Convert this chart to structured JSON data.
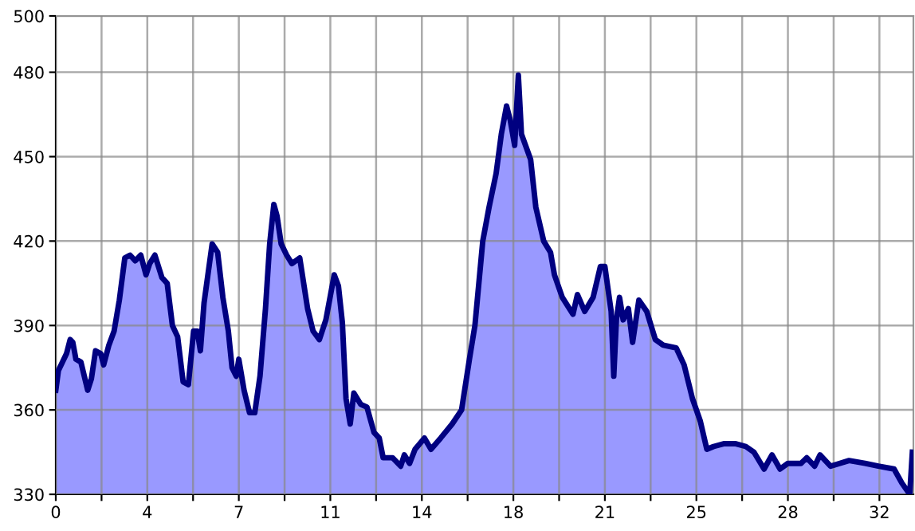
{
  "chart_data": {
    "type": "area",
    "x": [
      0,
      0.1,
      0.41,
      0.55,
      0.65,
      0.77,
      0.96,
      1.22,
      1.36,
      1.52,
      1.72,
      1.83,
      2.03,
      2.23,
      2.43,
      2.64,
      2.84,
      3.04,
      3.25,
      3.45,
      3.59,
      3.79,
      4.06,
      4.26,
      4.46,
      4.66,
      4.87,
      5.07,
      5.27,
      5.41,
      5.53,
      5.67,
      5.98,
      6.19,
      6.39,
      6.6,
      6.74,
      6.9,
      7.0,
      7.2,
      7.41,
      7.61,
      7.81,
      8.02,
      8.18,
      8.34,
      8.46,
      8.62,
      8.83,
      9.03,
      9.33,
      9.63,
      9.84,
      10.08,
      10.33,
      10.65,
      10.81,
      10.96,
      11.1,
      11.26,
      11.4,
      11.66,
      11.9,
      12.17,
      12.37,
      12.52,
      12.88,
      13.19,
      13.33,
      13.53,
      13.74,
      14.1,
      14.35,
      14.72,
      15.16,
      15.52,
      15.82,
      16.03,
      16.33,
      16.57,
      16.84,
      17.04,
      17.24,
      17.38,
      17.55,
      17.69,
      17.81,
      18.16,
      18.36,
      18.66,
      18.92,
      19.07,
      19.37,
      19.78,
      19.95,
      20.23,
      20.55,
      20.83,
      21.0,
      21.24,
      21.34,
      21.44,
      21.56,
      21.7,
      21.9,
      22.06,
      22.3,
      22.6,
      22.93,
      23.23,
      23.73,
      24.03,
      24.35,
      24.65,
      24.9,
      25.16,
      25.57,
      25.98,
      26.39,
      26.7,
      27.09,
      27.39,
      27.7,
      28.0,
      28.5,
      28.72,
      29.02,
      29.23,
      29.63,
      30.34,
      30.95,
      31.46,
      32.06,
      32.36,
      32.66,
      32.76
    ],
    "series": [
      {
        "color": "#9999ff",
        "values": [
          367,
          374,
          380,
          385,
          384,
          378,
          377,
          367,
          371,
          381,
          380,
          376,
          383,
          388,
          399,
          414,
          415,
          413,
          415,
          408,
          412,
          415,
          407,
          405,
          390,
          386,
          370,
          369,
          388,
          388,
          381,
          398,
          419,
          416,
          400,
          388,
          375,
          372,
          378,
          367,
          359,
          359,
          372,
          396,
          419,
          433,
          429,
          419,
          415,
          412,
          414,
          396,
          388,
          385,
          392,
          408,
          404,
          391,
          364,
          355,
          366,
          362,
          361,
          352,
          350,
          343,
          343,
          340,
          344,
          341,
          346,
          350,
          346,
          350,
          355,
          360,
          378,
          390,
          420,
          432,
          444,
          458,
          468,
          463,
          454,
          479,
          458,
          449,
          432,
          420,
          416,
          408,
          400,
          394,
          401,
          395,
          400,
          411,
          411,
          395,
          372,
          392,
          400,
          392,
          396,
          384,
          399,
          395,
          385,
          383,
          382,
          376,
          364,
          356,
          346,
          347,
          348,
          348,
          347,
          345,
          339,
          344,
          339,
          341,
          341,
          343,
          340,
          344,
          340,
          342,
          341,
          340,
          339,
          334,
          330,
          345
        ]
      }
    ],
    "xlim": [
      0,
      32.8
    ],
    "xticks": [
      0,
      {
        "value": 1.75,
        "label": null
      },
      {
        "value": 3.5,
        "label": "4"
      },
      {
        "value": 5.25,
        "label": null
      },
      7,
      {
        "value": 8.75,
        "label": null
      },
      {
        "value": 10.5,
        "label": "11"
      },
      {
        "value": 12.25,
        "label": null
      },
      14,
      {
        "value": 15.75,
        "label": null
      },
      {
        "value": 17.5,
        "label": "18"
      },
      {
        "value": 19.25,
        "label": null
      },
      21,
      {
        "value": 22.75,
        "label": null
      },
      {
        "value": 24.5,
        "label": "25"
      },
      {
        "value": 26.25,
        "label": null
      },
      28,
      {
        "value": 29.75,
        "label": null
      },
      {
        "value": 31.5,
        "label": "32"
      }
    ],
    "ylim": [
      330,
      500
    ],
    "yticks": [
      330,
      360,
      390,
      420,
      450,
      480,
      500
    ],
    "grid": true,
    "legend": false
  }
}
